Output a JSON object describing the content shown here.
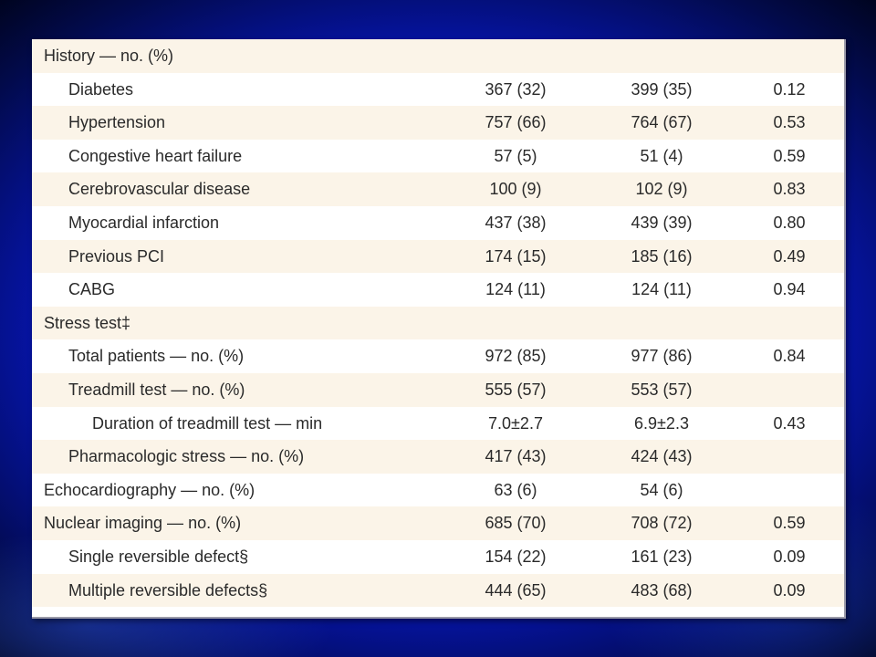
{
  "rows": [
    {
      "label": "History — no. (%)",
      "c1": "",
      "c2": "",
      "p": "",
      "level": 0
    },
    {
      "label": "Diabetes",
      "c1": "367 (32)",
      "c2": "399 (35)",
      "p": "0.12",
      "level": 1
    },
    {
      "label": "Hypertension",
      "c1": "757 (66)",
      "c2": "764 (67)",
      "p": "0.53",
      "level": 1
    },
    {
      "label": "Congestive heart failure",
      "c1": "57 (5)",
      "c2": "51 (4)",
      "p": "0.59",
      "level": 1
    },
    {
      "label": "Cerebrovascular disease",
      "c1": "100 (9)",
      "c2": "102 (9)",
      "p": "0.83",
      "level": 1
    },
    {
      "label": "Myocardial infarction",
      "c1": "437 (38)",
      "c2": "439 (39)",
      "p": "0.80",
      "level": 1
    },
    {
      "label": "Previous PCI",
      "c1": "174 (15)",
      "c2": "185 (16)",
      "p": "0.49",
      "level": 1
    },
    {
      "label": "CABG",
      "c1": "124 (11)",
      "c2": "124 (11)",
      "p": "0.94",
      "level": 1
    },
    {
      "label": "Stress test‡",
      "c1": "",
      "c2": "",
      "p": "",
      "level": 0
    },
    {
      "label": "Total patients — no. (%)",
      "c1": "972 (85)",
      "c2": "977 (86)",
      "p": "0.84",
      "level": 1
    },
    {
      "label": "Treadmill test — no. (%)",
      "c1": "555 (57)",
      "c2": "553 (57)",
      "p": "",
      "level": 1
    },
    {
      "label": "Duration of treadmill test — min",
      "c1": "7.0±2.7",
      "c2": "6.9±2.3",
      "p": "0.43",
      "level": 2
    },
    {
      "label": "Pharmacologic stress — no. (%)",
      "c1": "417 (43)",
      "c2": "424 (43)",
      "p": "",
      "level": 1
    },
    {
      "label": "Echocardiography — no. (%)",
      "c1": "63 (6)",
      "c2": "54 (6)",
      "p": "",
      "level": 0
    },
    {
      "label": "Nuclear imaging — no. (%)",
      "c1": "685 (70)",
      "c2": "708 (72)",
      "p": "0.59",
      "level": 0
    },
    {
      "label": "Single reversible defect§",
      "c1": "154 (22)",
      "c2": "161 (23)",
      "p": "0.09",
      "level": 1
    },
    {
      "label": "Multiple reversible defects§",
      "c1": "444 (65)",
      "c2": "483 (68)",
      "p": "0.09",
      "level": 1
    }
  ],
  "colors": {
    "shaded_row": "#fbf4e8",
    "plain_row": "#ffffff",
    "text": "#2a2a2a",
    "background_blue": "#0d1ed6"
  }
}
